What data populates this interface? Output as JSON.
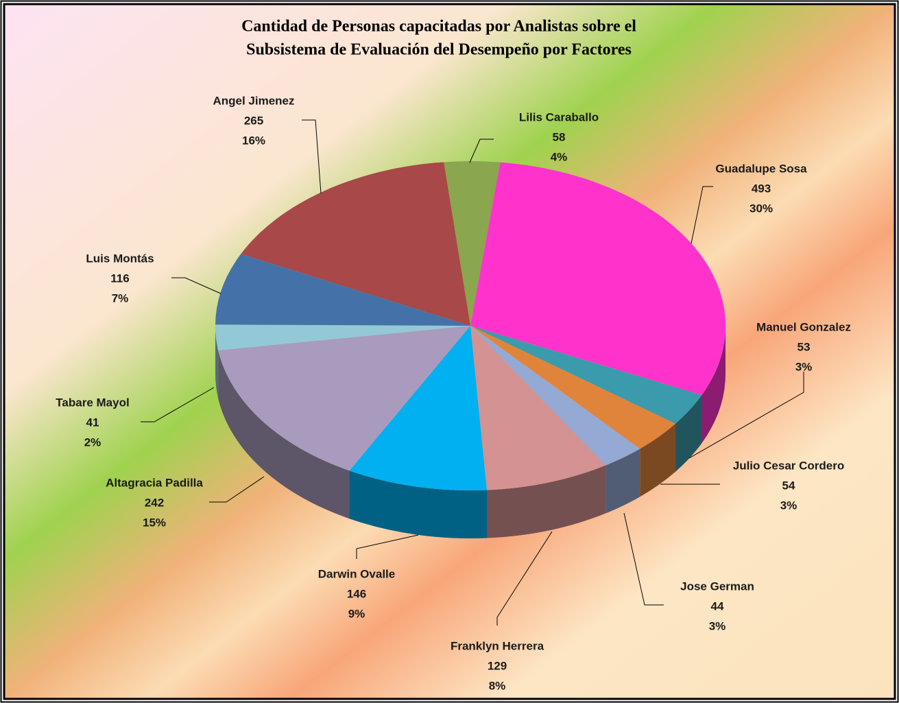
{
  "chart_data": {
    "type": "pie3d",
    "title": [
      "Cantidad de Personas capacitadas por Analistas sobre el",
      "Subsistema de Evaluación del Desempeño por Factores"
    ],
    "categories": [
      "Lilis Caraballo",
      "Guadalupe Sosa",
      "Manuel Gonzalez",
      "Julio Cesar Cordero",
      "Jose German",
      "Franklyn Herrera",
      "Darwin Ovalle",
      "Altagracia Padilla",
      "Tabare Mayol",
      "Luis Montás",
      "Angel Jimenez"
    ],
    "values": [
      58,
      493,
      53,
      54,
      44,
      129,
      146,
      242,
      41,
      116,
      265
    ],
    "percent_labels": [
      "4%",
      "30%",
      "3%",
      "3%",
      "3%",
      "8%",
      "9%",
      "15%",
      "2%",
      "7%",
      "16%"
    ],
    "colors": [
      "#8aa64e",
      "#ff33cc",
      "#3b9aab",
      "#e0843c",
      "#94a9d3",
      "#d49292",
      "#00b0f0",
      "#a99bbd",
      "#93c9d6",
      "#4472a8",
      "#a84848"
    ]
  }
}
